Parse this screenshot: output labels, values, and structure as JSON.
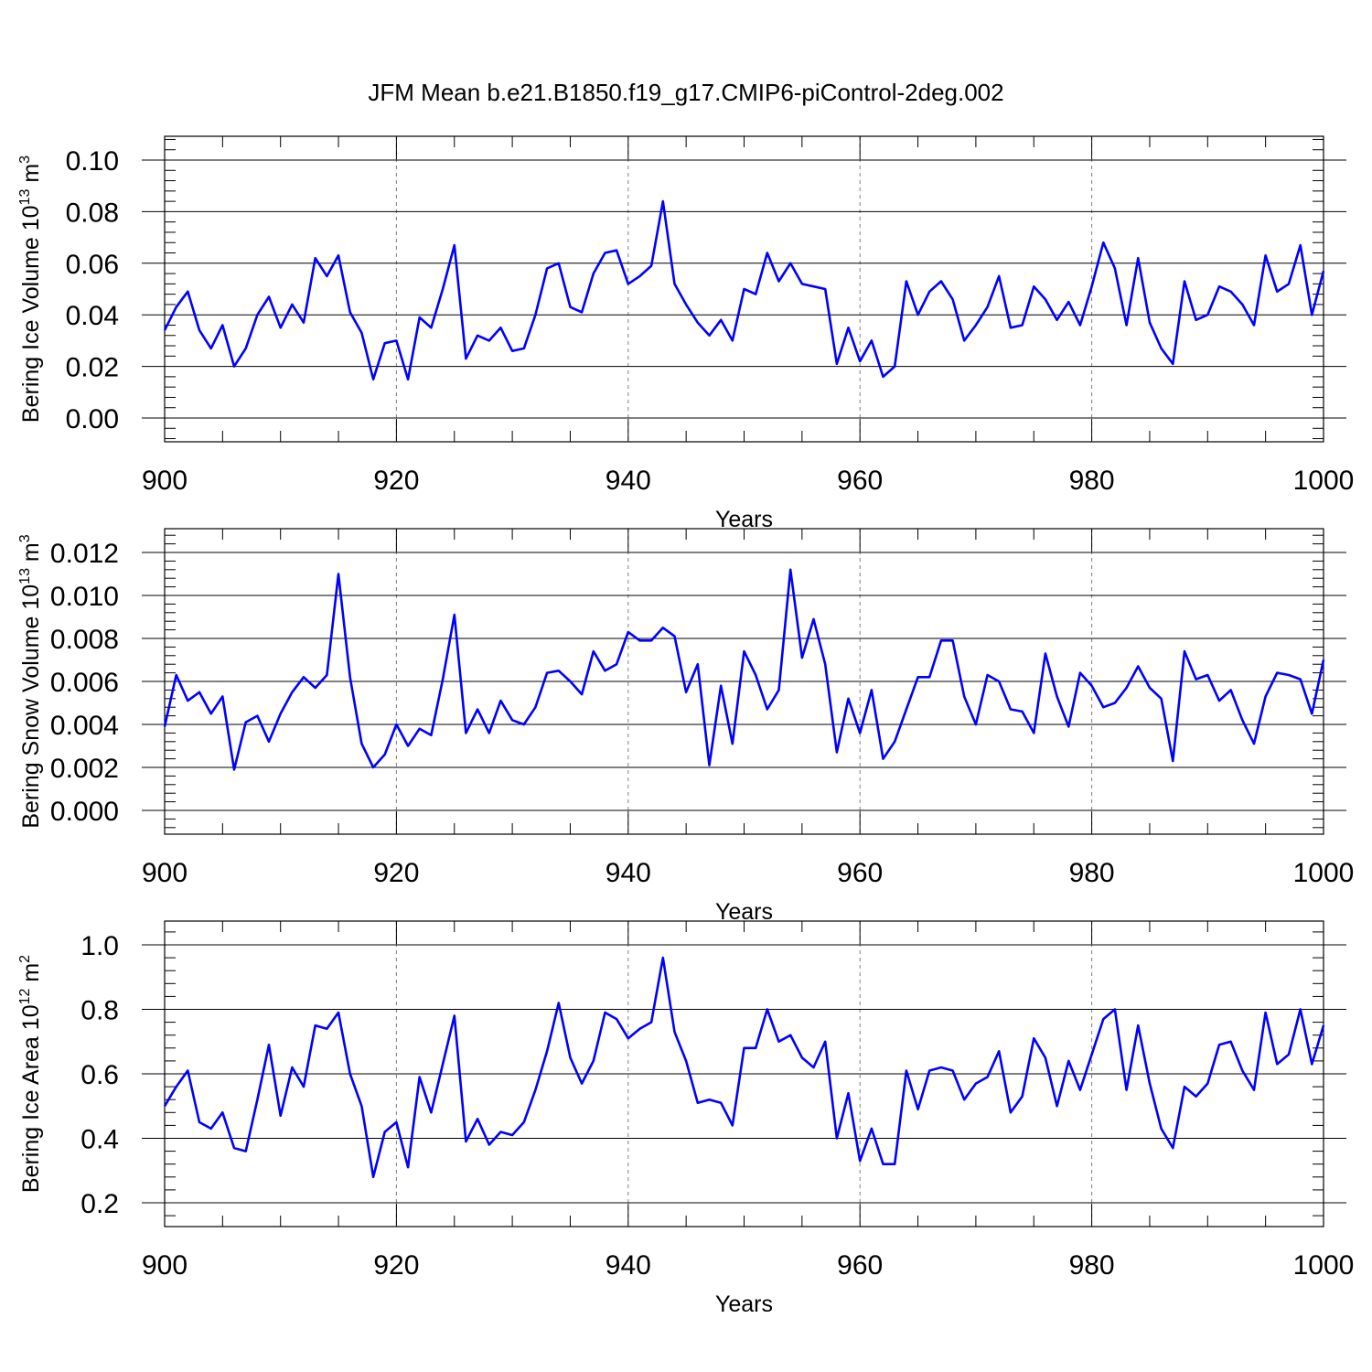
{
  "title": "JFM Mean b.e21.B1850.f19_g17.CMIP6-piControl-2deg.002",
  "line_color": "#0000ff",
  "chart_data": [
    {
      "type": "line",
      "ylabel": {
        "prefix": "Bering Ice Volume 10",
        "exp": "13",
        "unit": " m",
        "unit_exp": "3"
      },
      "xlabel": "Years",
      "xlim": [
        900,
        1000
      ],
      "ylim": [
        0.0,
        0.1
      ],
      "xticks": [
        900,
        920,
        940,
        960,
        980,
        1000
      ],
      "yticks": [
        "0.00",
        "0.02",
        "0.04",
        "0.06",
        "0.08",
        "0.10"
      ],
      "x_start": 900,
      "values": [
        0.034,
        0.043,
        0.049,
        0.034,
        0.027,
        0.036,
        0.02,
        0.027,
        0.04,
        0.047,
        0.035,
        0.044,
        0.037,
        0.062,
        0.055,
        0.063,
        0.041,
        0.033,
        0.015,
        0.029,
        0.03,
        0.015,
        0.039,
        0.035,
        0.05,
        0.067,
        0.023,
        0.032,
        0.03,
        0.035,
        0.026,
        0.027,
        0.04,
        0.058,
        0.06,
        0.043,
        0.041,
        0.056,
        0.064,
        0.065,
        0.052,
        0.055,
        0.059,
        0.084,
        0.052,
        0.044,
        0.037,
        0.032,
        0.038,
        0.03,
        0.05,
        0.048,
        0.064,
        0.053,
        0.06,
        0.052,
        0.051,
        0.05,
        0.021,
        0.035,
        0.022,
        0.03,
        0.016,
        0.02,
        0.053,
        0.04,
        0.049,
        0.053,
        0.046,
        0.03,
        0.036,
        0.043,
        0.055,
        0.035,
        0.036,
        0.051,
        0.046,
        0.038,
        0.045,
        0.036,
        0.051,
        0.068,
        0.058,
        0.036,
        0.062,
        0.037,
        0.027,
        0.021,
        0.053,
        0.038,
        0.04,
        0.051,
        0.049,
        0.044,
        0.036,
        0.063,
        0.049,
        0.052,
        0.067,
        0.04,
        0.057
      ],
      "grid": "vertical dashed at major x ticks"
    },
    {
      "type": "line",
      "ylabel": {
        "prefix": "Bering Snow Volume 10",
        "exp": "13",
        "unit": " m",
        "unit_exp": "3"
      },
      "xlabel": "Years",
      "xlim": [
        900,
        1000
      ],
      "ylim": [
        0.0,
        0.012
      ],
      "xticks": [
        900,
        920,
        940,
        960,
        980,
        1000
      ],
      "yticks": [
        "0.000",
        "0.002",
        "0.004",
        "0.006",
        "0.008",
        "0.010",
        "0.012"
      ],
      "x_start": 900,
      "values": [
        0.0039,
        0.0063,
        0.0051,
        0.0055,
        0.0045,
        0.0053,
        0.0019,
        0.0041,
        0.0044,
        0.0032,
        0.0045,
        0.0055,
        0.0062,
        0.0057,
        0.0063,
        0.011,
        0.0062,
        0.0031,
        0.002,
        0.0026,
        0.004,
        0.003,
        0.0038,
        0.0035,
        0.0061,
        0.0091,
        0.0036,
        0.0047,
        0.0036,
        0.0051,
        0.0042,
        0.004,
        0.0048,
        0.0064,
        0.0065,
        0.006,
        0.0054,
        0.0074,
        0.0065,
        0.0068,
        0.0083,
        0.0079,
        0.0079,
        0.0085,
        0.0081,
        0.0055,
        0.0068,
        0.0021,
        0.0058,
        0.0031,
        0.0074,
        0.0063,
        0.0047,
        0.0056,
        0.0112,
        0.0071,
        0.0089,
        0.0068,
        0.0027,
        0.0052,
        0.0036,
        0.0056,
        0.0024,
        0.0032,
        0.0047,
        0.0062,
        0.0062,
        0.0079,
        0.0079,
        0.0053,
        0.004,
        0.0063,
        0.006,
        0.0047,
        0.0046,
        0.0036,
        0.0073,
        0.0053,
        0.0039,
        0.0064,
        0.0058,
        0.0048,
        0.005,
        0.0057,
        0.0067,
        0.0057,
        0.0052,
        0.0023,
        0.0074,
        0.0061,
        0.0063,
        0.0051,
        0.0056,
        0.0042,
        0.0031,
        0.0053,
        0.0064,
        0.0063,
        0.0061,
        0.0045,
        0.007
      ],
      "grid": "vertical dashed at major x ticks"
    },
    {
      "type": "line",
      "ylabel": {
        "prefix": "Bering Ice Area 10",
        "exp": "12",
        "unit": " m",
        "unit_exp": "2"
      },
      "xlabel": "Years",
      "xlim": [
        900,
        1000
      ],
      "ylim": [
        0.2,
        1.0
      ],
      "xticks": [
        900,
        920,
        940,
        960,
        980,
        1000
      ],
      "yticks": [
        "0.2",
        "0.4",
        "0.6",
        "0.8",
        "1.0"
      ],
      "x_start": 900,
      "values": [
        0.5,
        0.56,
        0.61,
        0.45,
        0.43,
        0.48,
        0.37,
        0.36,
        0.52,
        0.69,
        0.47,
        0.62,
        0.56,
        0.75,
        0.74,
        0.79,
        0.6,
        0.5,
        0.28,
        0.42,
        0.45,
        0.31,
        0.59,
        0.48,
        0.63,
        0.78,
        0.39,
        0.46,
        0.38,
        0.42,
        0.41,
        0.45,
        0.55,
        0.67,
        0.82,
        0.65,
        0.57,
        0.64,
        0.79,
        0.77,
        0.71,
        0.74,
        0.76,
        0.96,
        0.73,
        0.64,
        0.51,
        0.52,
        0.51,
        0.44,
        0.68,
        0.68,
        0.8,
        0.7,
        0.72,
        0.65,
        0.62,
        0.7,
        0.4,
        0.54,
        0.33,
        0.43,
        0.32,
        0.32,
        0.61,
        0.49,
        0.61,
        0.62,
        0.61,
        0.52,
        0.57,
        0.59,
        0.67,
        0.48,
        0.53,
        0.71,
        0.65,
        0.5,
        0.64,
        0.55,
        0.66,
        0.77,
        0.8,
        0.55,
        0.75,
        0.57,
        0.43,
        0.37,
        0.56,
        0.53,
        0.57,
        0.69,
        0.7,
        0.61,
        0.55,
        0.79,
        0.63,
        0.66,
        0.8,
        0.63,
        0.75
      ],
      "grid": "vertical dashed at major x ticks"
    }
  ]
}
